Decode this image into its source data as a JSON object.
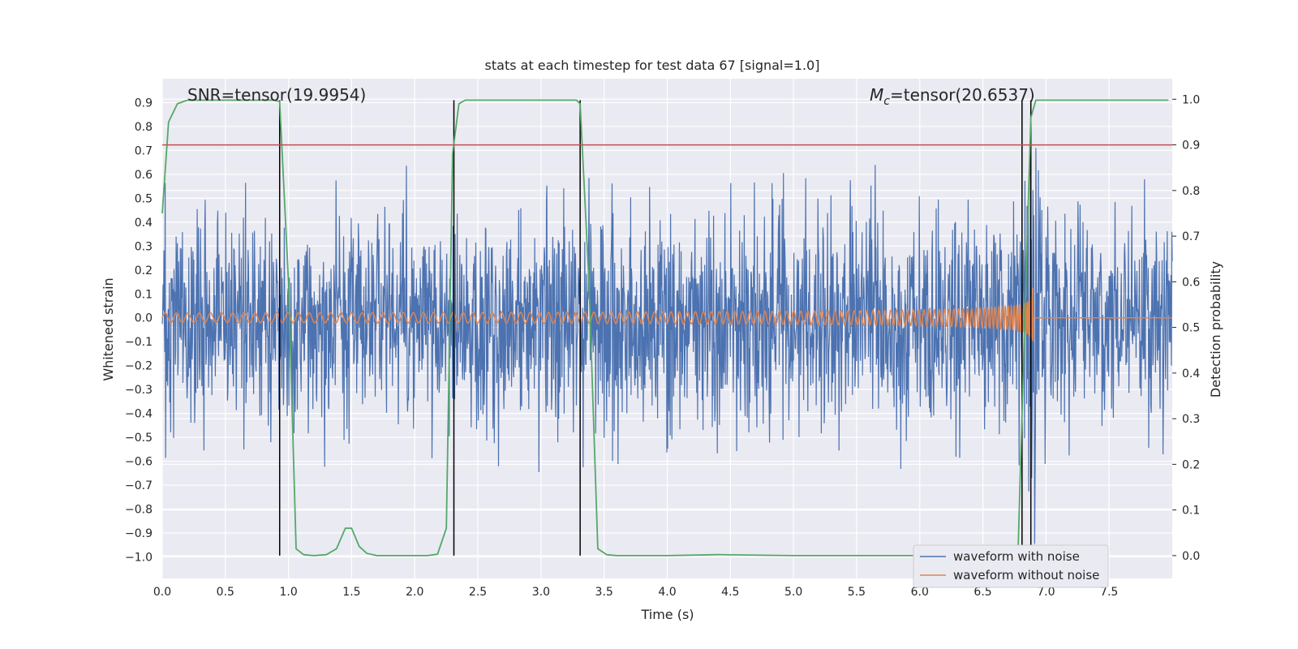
{
  "chart_data": {
    "type": "line",
    "title": "stats at each timestep for test data 67 [signal=1.0]",
    "xlabel": "Time (s)",
    "ylabel": "Whitened strain",
    "y2label": "Detection probability",
    "xlim": [
      0.0,
      8.0
    ],
    "ylim": [
      -1.09,
      1.0
    ],
    "y2lim": [
      -0.05,
      1.045
    ],
    "xticks": [
      "0.0",
      "0.5",
      "1.0",
      "1.5",
      "2.0",
      "2.5",
      "3.0",
      "3.5",
      "4.0",
      "4.5",
      "5.0",
      "5.5",
      "6.0",
      "6.5",
      "7.0",
      "7.5"
    ],
    "yticks": [
      "0.9",
      "0.8",
      "0.7",
      "0.6",
      "0.5",
      "0.4",
      "0.3",
      "0.2",
      "0.1",
      "0.0",
      "−0.1",
      "−0.2",
      "−0.3",
      "−0.4",
      "−0.5",
      "−0.6",
      "−0.7",
      "−0.8",
      "−0.9",
      "−1.0"
    ],
    "y2ticks": [
      "1.0",
      "0.9",
      "0.8",
      "0.7",
      "0.6",
      "0.5",
      "0.4",
      "0.3",
      "0.2",
      "0.1",
      "0.0"
    ],
    "annotations": {
      "snr": "SNR=tensor(19.9954)",
      "mc_symbol": "M",
      "mc_sub": "c",
      "mc_value": "=tensor(20.6537)"
    },
    "legend": {
      "placement": "lower right",
      "entries": [
        "waveform with noise",
        "waveform without noise"
      ]
    },
    "grid": true,
    "threshold_line": {
      "axis": "right",
      "value": 0.9,
      "color": "#c44e52"
    },
    "vertical_lines": [
      {
        "x": 0.93,
        "y2_range": [
          0.0,
          0.998
        ]
      },
      {
        "x": 2.31,
        "y2_range": [
          0.0,
          0.998
        ]
      },
      {
        "x": 3.31,
        "y2_range": [
          0.0,
          0.998
        ]
      },
      {
        "x": 6.81,
        "y2_range": [
          0.0,
          0.998
        ]
      },
      {
        "x": 6.88,
        "y2_range": [
          0.0,
          0.998
        ]
      }
    ],
    "series": [
      {
        "name": "waveform with noise",
        "color": "#4c72b0",
        "axis": "left",
        "description_envelope": {
          "typical_positive_peak": 0.45,
          "typical_negative_peak": -0.45,
          "max_value": 0.71,
          "min_value": -1.0,
          "merger_time": 6.9
        }
      },
      {
        "name": "waveform without noise",
        "color": "#dd8452",
        "axis": "left",
        "chirp": {
          "start_time": 0.0,
          "merger_time": 6.9,
          "initial_amplitude": 0.02,
          "peak_amplitude": 0.85,
          "initial_frequency_hz": 11
        }
      },
      {
        "name": "detection probability",
        "color": "#55a868",
        "axis": "right",
        "x": [
          0.0,
          0.05,
          0.12,
          0.2,
          0.3,
          0.5,
          0.7,
          0.88,
          0.93,
          1.0,
          1.06,
          1.12,
          1.2,
          1.3,
          1.38,
          1.45,
          1.5,
          1.56,
          1.62,
          1.7,
          1.8,
          1.9,
          2.0,
          2.1,
          2.18,
          2.25,
          2.3,
          2.35,
          2.4,
          2.5,
          2.7,
          3.0,
          3.28,
          3.31,
          3.38,
          3.45,
          3.52,
          3.6,
          4.0,
          4.4,
          5.0,
          5.5,
          6.0,
          6.5,
          6.7,
          6.78,
          6.83,
          6.88,
          6.92,
          7.0,
          7.5,
          7.97
        ],
        "y": [
          0.75,
          0.95,
          0.99,
          0.998,
          0.998,
          0.998,
          0.998,
          0.998,
          0.995,
          0.6,
          0.015,
          0.002,
          0.0,
          0.002,
          0.015,
          0.06,
          0.06,
          0.02,
          0.005,
          0.0,
          0.0,
          0.0,
          0.0,
          0.0,
          0.003,
          0.06,
          0.88,
          0.99,
          0.998,
          0.998,
          0.998,
          0.998,
          0.998,
          0.99,
          0.6,
          0.015,
          0.002,
          0.0,
          0.0,
          0.002,
          0.0,
          0.0,
          0.0,
          0.0,
          0.0,
          0.02,
          0.5,
          0.96,
          0.998,
          0.998,
          0.998,
          0.998
        ]
      }
    ]
  }
}
